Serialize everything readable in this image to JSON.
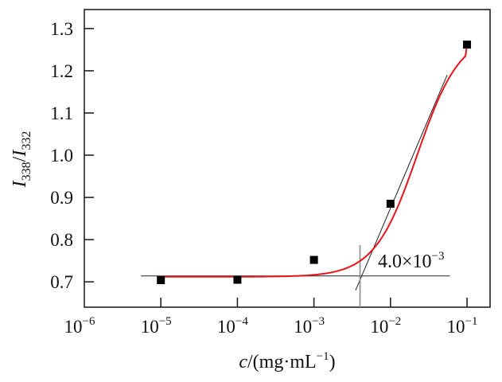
{
  "chart_data": {
    "type": "scatter",
    "xlabel": {
      "var": "c",
      "unit": "/(mg·mL",
      "unit_exp": "−1",
      "close": ")"
    },
    "ylabel": {
      "num": "I",
      "num_sub": "338",
      "slash": "/",
      "den": "I",
      "den_sub": "332"
    },
    "xscale": "log",
    "xlim": [
      1e-06,
      0.2
    ],
    "ylim": [
      0.64,
      1.345
    ],
    "xticks": [
      {
        "value": 1e-06,
        "base": "10",
        "exp": "−6"
      },
      {
        "value": 1e-05,
        "base": "10",
        "exp": "−5"
      },
      {
        "value": 0.0001,
        "base": "10",
        "exp": "−4"
      },
      {
        "value": 0.001,
        "base": "10",
        "exp": "−3"
      },
      {
        "value": 0.01,
        "base": "10",
        "exp": "−2"
      },
      {
        "value": 0.1,
        "base": "10",
        "exp": "−1"
      }
    ],
    "yticks": [
      "0.7",
      "0.8",
      "0.9",
      "1.0",
      "1.1",
      "1.2",
      "1.3"
    ],
    "points": {
      "x": [
        1e-05,
        0.0001,
        0.001,
        0.01,
        0.1
      ],
      "y": [
        0.704,
        0.705,
        0.752,
        0.885,
        1.262
      ]
    },
    "fit_color": "#e8141c",
    "baseline": {
      "y": 0.714,
      "x_range": [
        5.5e-06,
        0.06
      ]
    },
    "tangent": {
      "from": [
        0.0035,
        0.68
      ],
      "to": [
        0.055,
        1.19
      ]
    },
    "cmc_marker": {
      "x": 0.004,
      "color": "#888888"
    },
    "annotation": {
      "mantissa": "4.0×10",
      "exp": "−3"
    },
    "grid": false,
    "legend": "none"
  }
}
